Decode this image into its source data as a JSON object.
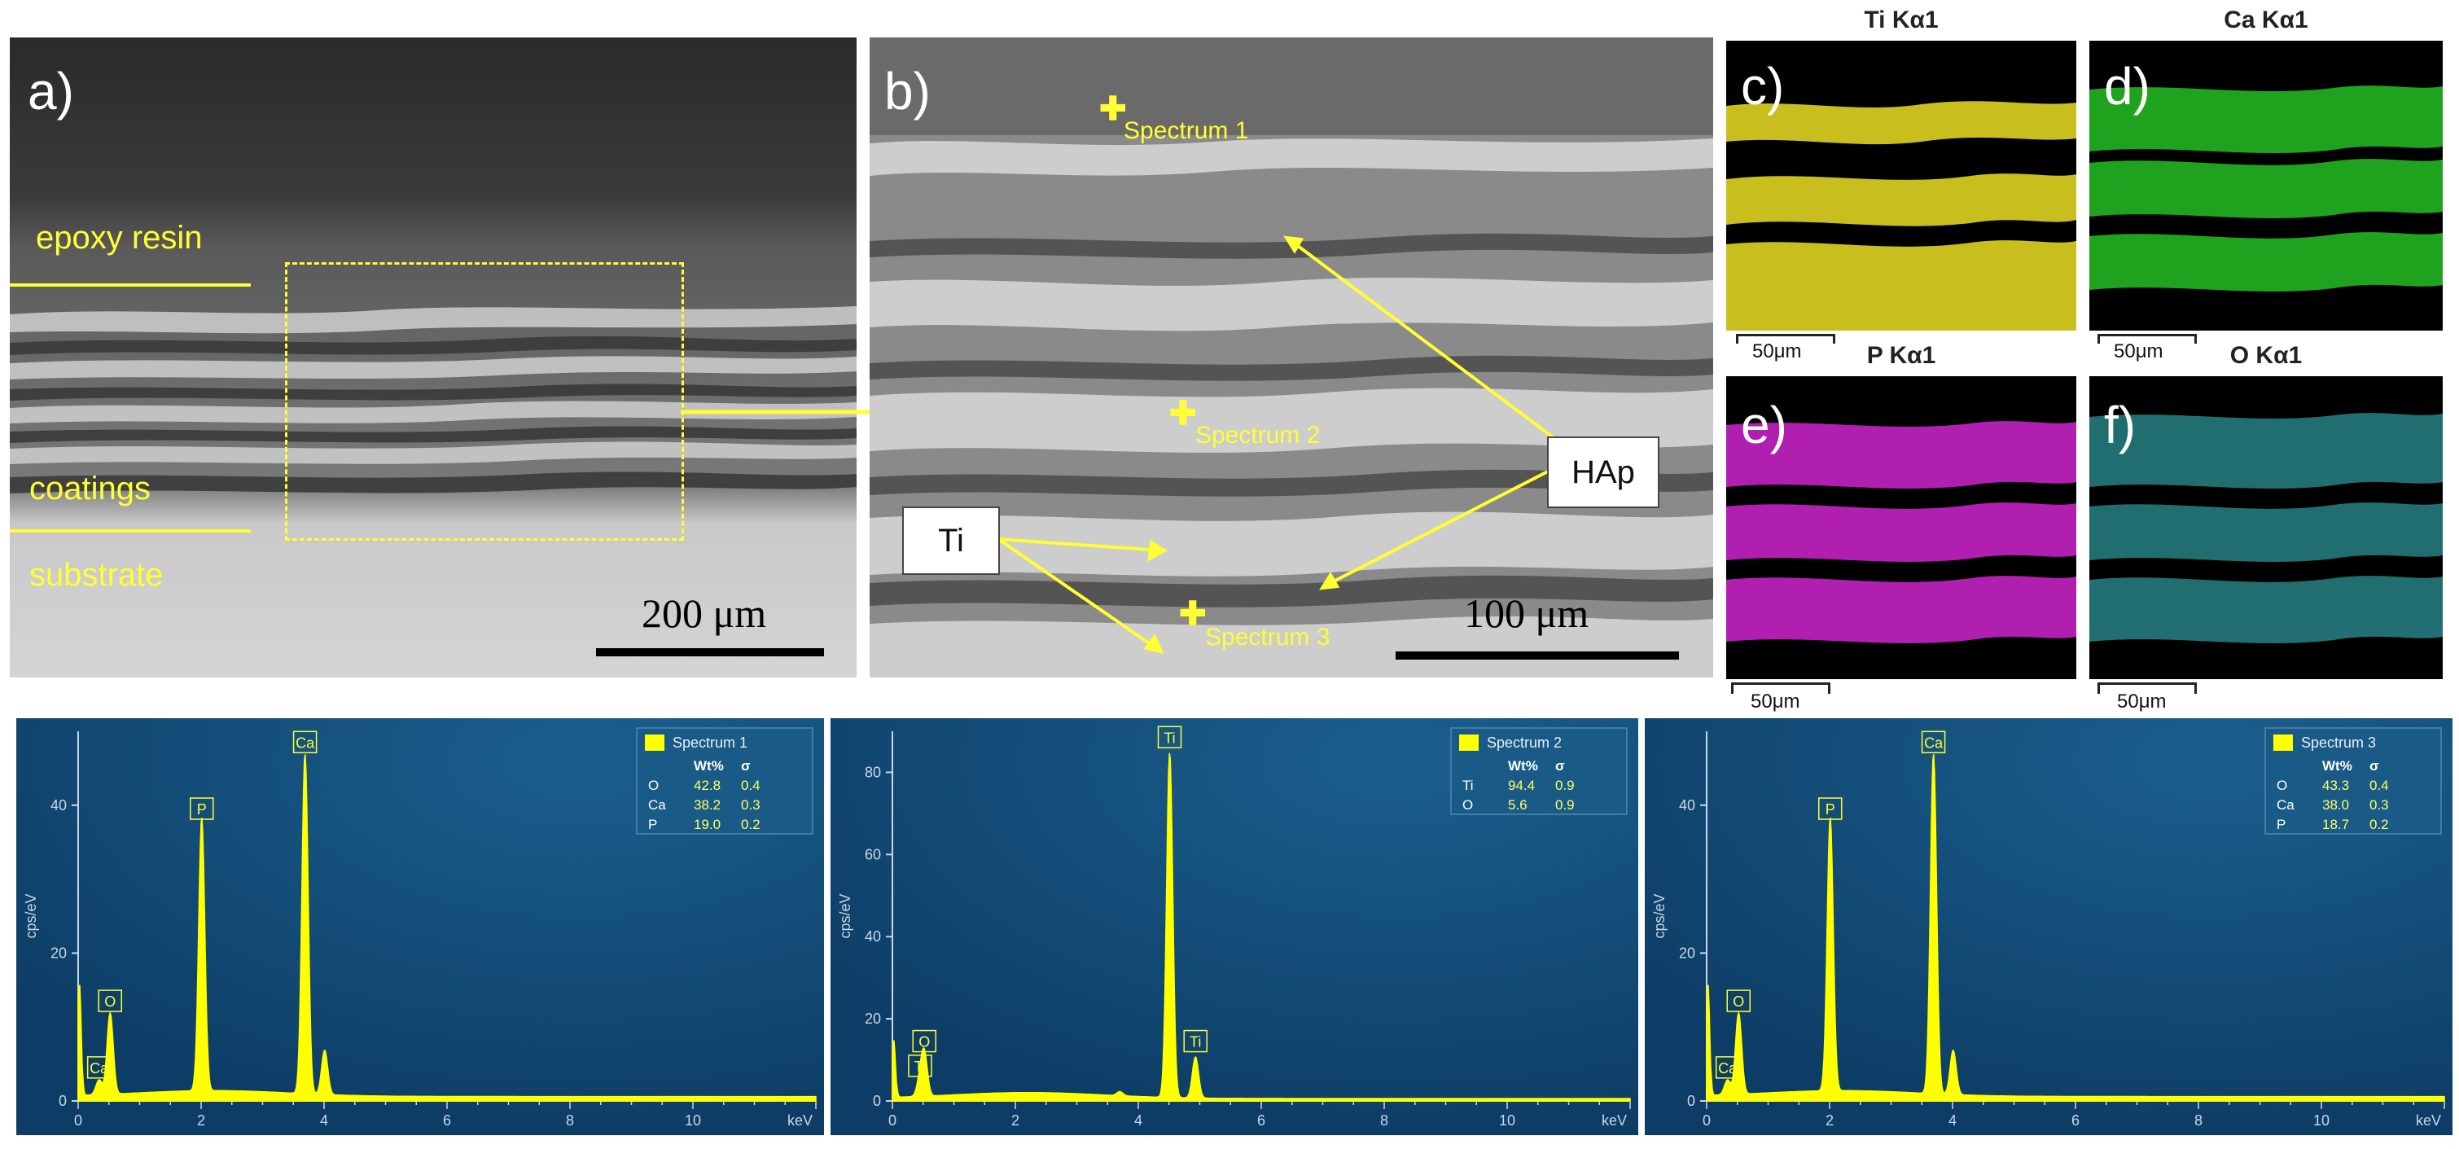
{
  "panels": {
    "a": {
      "label": "a)",
      "epoxy": "epoxy resin",
      "coatings": "coatings",
      "substrate": "substrate",
      "scale": "200 μm"
    },
    "b": {
      "label": "b)",
      "spectrum_1": "Spectrum 1",
      "spectrum_2": "Spectrum 2",
      "spectrum_3": "Spectrum 3",
      "ti_box": "Ti",
      "hap_box": "HAp",
      "scale": "100 μm"
    },
    "c": {
      "label": "c)",
      "title": "Ti Kα1",
      "scale": "50μm",
      "color": "#c8be1e"
    },
    "d": {
      "label": "d)",
      "title": "Ca Kα1",
      "scale": "50μm",
      "color": "#1fa31f"
    },
    "e": {
      "label": "e)",
      "title": "P Kα1",
      "scale": "50μm",
      "color": "#b01fb0"
    },
    "f": {
      "label": "f)",
      "title": "O Kα1",
      "scale": "50μm",
      "color": "#3fc4c8"
    }
  },
  "colors": {
    "annotation": "#ffff33",
    "edx_bg": "#0d3d66",
    "peak": "#ffff00"
  },
  "chart_data": [
    {
      "type": "line",
      "ylabel": "cps/eV",
      "xlabel": "keV",
      "x_ticks": [
        0,
        2,
        4,
        6,
        8,
        10
      ],
      "xlim": [
        0,
        12
      ],
      "ylim": [
        0,
        50
      ],
      "y_ticks": [
        0,
        20,
        40
      ],
      "legend": {
        "name": "Spectrum 1",
        "headers": [
          "",
          "Wt%",
          "σ"
        ],
        "rows": [
          [
            "O",
            "42.8",
            "0.4"
          ],
          [
            "Ca",
            "38.2",
            "0.3"
          ],
          [
            "P",
            "19.0",
            "0.2"
          ]
        ]
      },
      "peaks": [
        {
          "el": "",
          "x": 0.02,
          "y": 16
        },
        {
          "el": "Ca",
          "x": 0.34,
          "y": 2
        },
        {
          "el": "O",
          "x": 0.52,
          "y": 11
        },
        {
          "el": "P",
          "x": 2.01,
          "y": 37
        },
        {
          "el": "Ca",
          "x": 3.69,
          "y": 46
        },
        {
          "el": "",
          "x": 4.01,
          "y": 6
        }
      ]
    },
    {
      "type": "line",
      "ylabel": "cps/eV",
      "xlabel": "keV",
      "x_ticks": [
        0,
        2,
        4,
        6,
        8,
        10
      ],
      "xlim": [
        0,
        12
      ],
      "ylim": [
        0,
        90
      ],
      "y_ticks": [
        0,
        20,
        40,
        60,
        80
      ],
      "legend": {
        "name": "Spectrum 2",
        "headers": [
          "",
          "Wt%",
          "σ"
        ],
        "rows": [
          [
            "Ti",
            "94.4",
            "0.9"
          ],
          [
            "O",
            "5.6",
            "0.9"
          ]
        ]
      },
      "peaks": [
        {
          "el": "",
          "x": 0.02,
          "y": 15
        },
        {
          "el": "Ti",
          "x": 0.45,
          "y": 4
        },
        {
          "el": "O",
          "x": 0.52,
          "y": 10
        },
        {
          "el": "",
          "x": 3.7,
          "y": 1
        },
        {
          "el": "Ti",
          "x": 4.51,
          "y": 84
        },
        {
          "el": "Ti",
          "x": 4.93,
          "y": 10
        }
      ]
    },
    {
      "type": "line",
      "ylabel": "cps/eV",
      "xlabel": "keV",
      "x_ticks": [
        0,
        2,
        4,
        6,
        8,
        10
      ],
      "xlim": [
        0,
        12
      ],
      "ylim": [
        0,
        50
      ],
      "y_ticks": [
        0,
        20,
        40
      ],
      "legend": {
        "name": "Spectrum 3",
        "headers": [
          "",
          "Wt%",
          "σ"
        ],
        "rows": [
          [
            "O",
            "43.3",
            "0.4"
          ],
          [
            "Ca",
            "38.0",
            "0.3"
          ],
          [
            "P",
            "18.7",
            "0.2"
          ]
        ]
      },
      "peaks": [
        {
          "el": "",
          "x": 0.02,
          "y": 16
        },
        {
          "el": "Ca",
          "x": 0.34,
          "y": 2
        },
        {
          "el": "O",
          "x": 0.52,
          "y": 11
        },
        {
          "el": "P",
          "x": 2.01,
          "y": 37
        },
        {
          "el": "Ca",
          "x": 3.69,
          "y": 46
        },
        {
          "el": "",
          "x": 4.01,
          "y": 6
        }
      ]
    }
  ]
}
